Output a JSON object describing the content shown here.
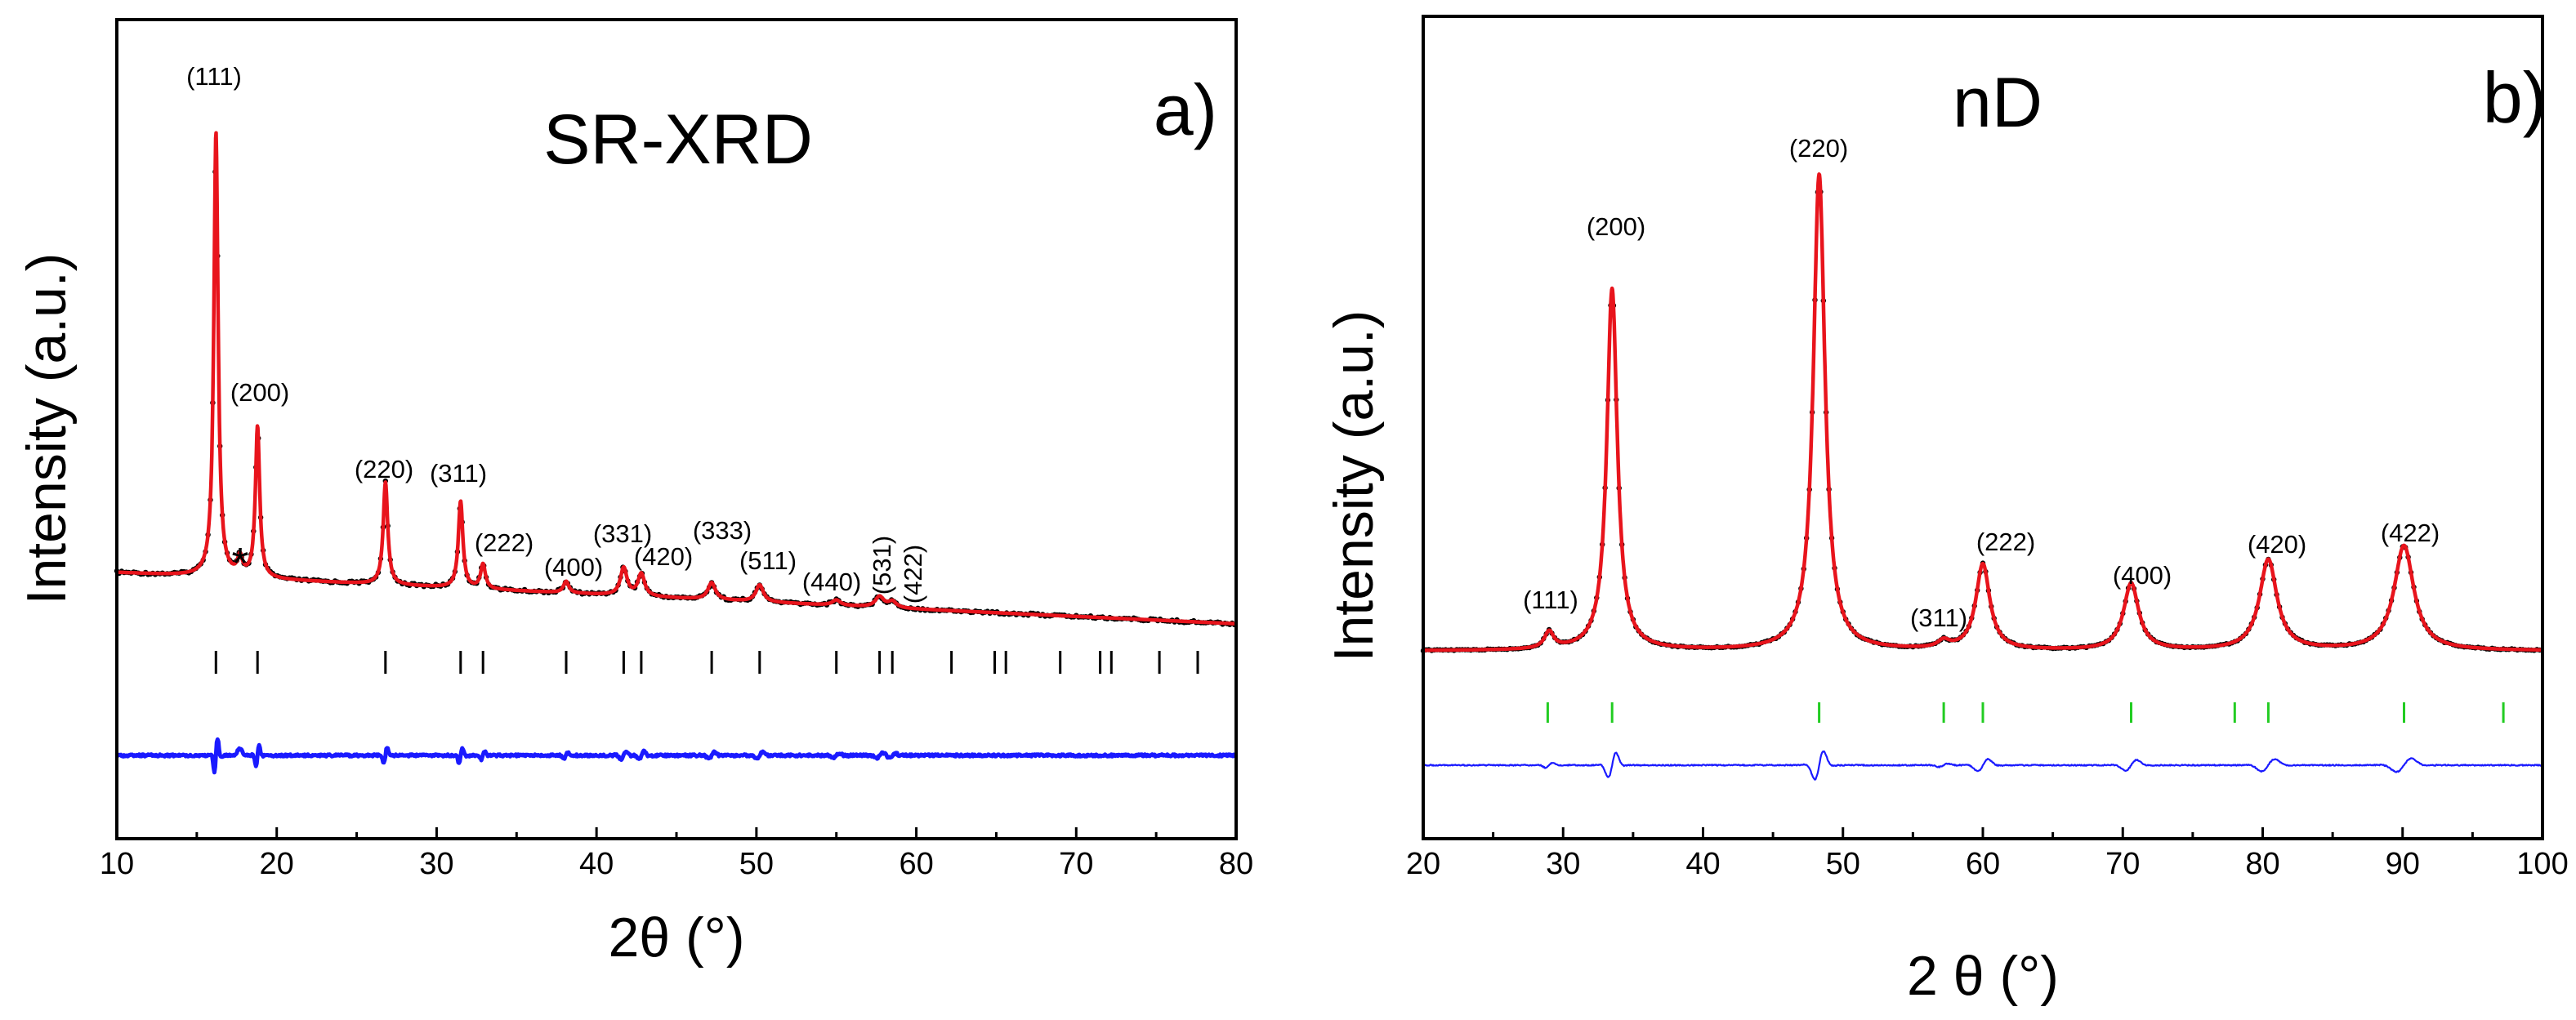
{
  "chart_data": [
    {
      "panel": "a)",
      "type": "line",
      "title": "SR-XRD",
      "xlabel": "2θ (°)",
      "ylabel": "Intensity (a.u.)",
      "xlim": [
        10,
        80
      ],
      "xticks": [
        10,
        20,
        30,
        40,
        50,
        60,
        70,
        80
      ],
      "xtick_labels": [
        "10",
        "20",
        "30",
        "40",
        "50",
        "60",
        "70",
        "80"
      ],
      "y_units": "arbitrary units, normalized so that the tallest peak = 100",
      "background": {
        "start": 2,
        "end": -4
      },
      "peaks": [
        {
          "label": "(111)",
          "x": 16.2,
          "height": 100,
          "width": 0.16
        },
        {
          "label": "(200)",
          "x": 18.8,
          "height": 34,
          "width": 0.16
        },
        {
          "label": "(220)",
          "x": 26.8,
          "height": 23,
          "width": 0.17
        },
        {
          "label": "(311)",
          "x": 31.5,
          "height": 19.5,
          "width": 0.17
        },
        {
          "label": "(222)",
          "x": 32.9,
          "height": 5.5,
          "width": 0.18
        },
        {
          "label": "(400)",
          "x": 38.1,
          "height": 2.6,
          "width": 0.2
        },
        {
          "label": "(331)",
          "x": 41.7,
          "height": 6.2,
          "width": 0.25
        },
        {
          "label": "(420)",
          "x": 42.8,
          "height": 5.0,
          "width": 0.25
        },
        {
          "label": "(333)",
          "x": 47.2,
          "height": 3.8,
          "width": 0.28
        },
        {
          "label": "(511)",
          "x": 50.2,
          "height": 3.8,
          "width": 0.28
        },
        {
          "label": "(440)",
          "x": 55.0,
          "height": 1.2,
          "width": 0.3
        },
        {
          "label": "(531)",
          "x": 57.7,
          "height": 2.4,
          "width": 0.32
        },
        {
          "label": "(422)",
          "x": 58.5,
          "height": 1.4,
          "width": 0.3
        }
      ],
      "impurity": {
        "label": "*",
        "x": 17.7,
        "height": 4.0
      },
      "series": [
        {
          "name": "observed",
          "color": "#000000",
          "style": "dots"
        },
        {
          "name": "calculated",
          "color": "#e8141c",
          "style": "line"
        },
        {
          "name": "difference",
          "color": "#1a1aff",
          "style": "line"
        }
      ],
      "bragg_positions": [
        16.2,
        18.8,
        26.8,
        31.5,
        32.9,
        38.1,
        41.7,
        42.8,
        47.2,
        50.2,
        55.0,
        57.7,
        58.5,
        62.2,
        64.9,
        65.6,
        69.0,
        71.5,
        72.2,
        75.2,
        77.6
      ],
      "bragg_color": "#000000"
    },
    {
      "panel": "b)",
      "type": "line",
      "title": "nD",
      "xlabel": "2 θ (°)",
      "ylabel": "Intensity (a.u.)",
      "xlim": [
        20,
        100
      ],
      "xticks": [
        20,
        30,
        40,
        50,
        60,
        70,
        80,
        90,
        100
      ],
      "xtick_labels": [
        "20",
        "30",
        "40",
        "50",
        "60",
        "70",
        "80",
        "90",
        "100"
      ],
      "y_units": "arbitrary units, normalized so that the tallest peak = 100",
      "background": {
        "start": 0,
        "end": 0
      },
      "peaks": [
        {
          "label": "(111)",
          "x": 29.0,
          "height": 3.5,
          "width": 0.4
        },
        {
          "label": "(200)",
          "x": 33.5,
          "height": 76,
          "width": 0.45
        },
        {
          "label": "(220)",
          "x": 48.3,
          "height": 100,
          "width": 0.5
        },
        {
          "label": "(311)",
          "x": 57.2,
          "height": 1.5,
          "width": 0.5
        },
        {
          "label": "(222)",
          "x": 60.0,
          "height": 18,
          "width": 0.6
        },
        {
          "label": "(400)",
          "x": 70.6,
          "height": 14,
          "width": 0.65
        },
        {
          "label": "(420)",
          "x": 80.4,
          "height": 19,
          "width": 0.75
        },
        {
          "label": "(422)",
          "x": 90.1,
          "height": 22,
          "width": 0.85
        }
      ],
      "series": [
        {
          "name": "observed",
          "color": "#000000",
          "style": "dots"
        },
        {
          "name": "calculated",
          "color": "#e8141c",
          "style": "line"
        },
        {
          "name": "difference",
          "color": "#1a1aff",
          "style": "line"
        }
      ],
      "bragg_positions": [
        28.9,
        33.5,
        48.3,
        57.2,
        60.0,
        70.6,
        78.0,
        80.4,
        90.1,
        97.2
      ],
      "bragg_color": "#22cc22"
    }
  ]
}
